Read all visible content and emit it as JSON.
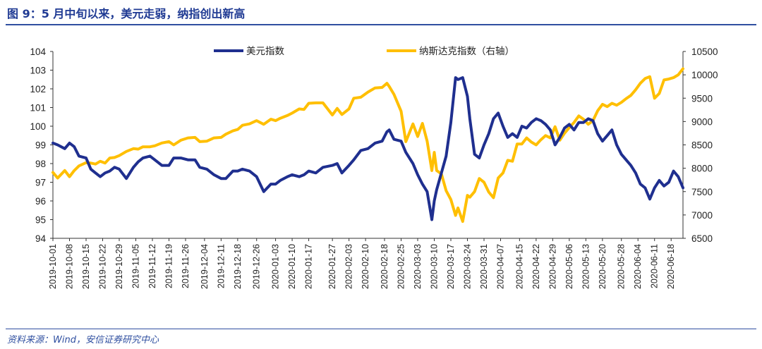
{
  "figure_title": "图 9：5 月中旬以来，美元走弱，纳指创出新高",
  "source": "资料来源：Wind，安信证券研究中心",
  "chart_data": {
    "type": "line",
    "title": "",
    "xlabel": "",
    "ylabel": "",
    "legend_position": "top-center",
    "grid": false,
    "x_start": "2019-10-01",
    "x_end": "2020-06-23",
    "categories": [
      "2019-10-01",
      "2019-10-08",
      "2019-10-15",
      "2019-10-22",
      "2019-10-29",
      "2019-11-05",
      "2019-11-12",
      "2019-11-19",
      "2019-11-26",
      "2019-12-04",
      "2019-12-11",
      "2019-12-18",
      "2019-12-26",
      "2020-01-03",
      "2020-01-10",
      "2020-01-17",
      "2020-01-27",
      "2020-02-03",
      "2020-02-10",
      "2020-02-18",
      "2020-02-25",
      "2020-03-03",
      "2020-03-10",
      "2020-03-17",
      "2020-03-24",
      "2020-03-31",
      "2020-04-07",
      "2020-04-15",
      "2020-04-22",
      "2020-04-29",
      "2020-05-06",
      "2020-05-13",
      "2020-05-20",
      "2020-05-28",
      "2020-06-04",
      "2020-06-11",
      "2020-06-18"
    ],
    "y_left": {
      "min": 94,
      "max": 104,
      "ticks": [
        "94",
        "95",
        "96",
        "97",
        "98",
        "99",
        "100",
        "101",
        "102",
        "103",
        "104"
      ]
    },
    "y_right": {
      "min": 6500,
      "max": 10500,
      "ticks": [
        "6500",
        "7000",
        "7500",
        "8000",
        "8500",
        "9000",
        "9500",
        "10000",
        "10500"
      ]
    },
    "series": [
      {
        "name": "美元指数",
        "axis": "left",
        "color": "#1f2f8f",
        "points": [
          [
            "2019-10-01",
            99.1
          ],
          [
            "2019-10-03",
            99.0
          ],
          [
            "2019-10-06",
            98.8
          ],
          [
            "2019-10-08",
            99.1
          ],
          [
            "2019-10-10",
            98.9
          ],
          [
            "2019-10-12",
            98.4
          ],
          [
            "2019-10-15",
            98.3
          ],
          [
            "2019-10-17",
            97.7
          ],
          [
            "2019-10-19",
            97.5
          ],
          [
            "2019-10-21",
            97.3
          ],
          [
            "2019-10-23",
            97.5
          ],
          [
            "2019-10-25",
            97.6
          ],
          [
            "2019-10-27",
            97.8
          ],
          [
            "2019-10-29",
            97.7
          ],
          [
            "2019-11-01",
            97.2
          ],
          [
            "2019-11-04",
            97.8
          ],
          [
            "2019-11-06",
            98.1
          ],
          [
            "2019-11-08",
            98.3
          ],
          [
            "2019-11-11",
            98.4
          ],
          [
            "2019-11-13",
            98.2
          ],
          [
            "2019-11-16",
            97.9
          ],
          [
            "2019-11-19",
            97.9
          ],
          [
            "2019-11-21",
            98.3
          ],
          [
            "2019-11-24",
            98.3
          ],
          [
            "2019-11-27",
            98.2
          ],
          [
            "2019-11-30",
            98.2
          ],
          [
            "2019-12-02",
            97.8
          ],
          [
            "2019-12-05",
            97.7
          ],
          [
            "2019-12-08",
            97.4
          ],
          [
            "2019-12-11",
            97.2
          ],
          [
            "2019-12-13",
            97.2
          ],
          [
            "2019-12-16",
            97.6
          ],
          [
            "2019-12-18",
            97.6
          ],
          [
            "2019-12-20",
            97.7
          ],
          [
            "2019-12-23",
            97.6
          ],
          [
            "2019-12-26",
            97.3
          ],
          [
            "2019-12-29",
            96.5
          ],
          [
            "2020-01-01",
            96.9
          ],
          [
            "2020-01-03",
            96.9
          ],
          [
            "2020-01-05",
            97.1
          ],
          [
            "2020-01-08",
            97.3
          ],
          [
            "2020-01-10",
            97.4
          ],
          [
            "2020-01-13",
            97.3
          ],
          [
            "2020-01-15",
            97.4
          ],
          [
            "2020-01-17",
            97.6
          ],
          [
            "2020-01-20",
            97.5
          ],
          [
            "2020-01-23",
            97.8
          ],
          [
            "2020-01-27",
            97.9
          ],
          [
            "2020-01-29",
            98.0
          ],
          [
            "2020-01-31",
            97.5
          ],
          [
            "2020-02-03",
            97.9
          ],
          [
            "2020-02-05",
            98.2
          ],
          [
            "2020-02-08",
            98.7
          ],
          [
            "2020-02-11",
            98.8
          ],
          [
            "2020-02-14",
            99.1
          ],
          [
            "2020-02-17",
            99.2
          ],
          [
            "2020-02-19",
            99.7
          ],
          [
            "2020-02-20",
            99.8
          ],
          [
            "2020-02-22",
            99.3
          ],
          [
            "2020-02-25",
            99.2
          ],
          [
            "2020-02-27",
            98.6
          ],
          [
            "2020-03-01",
            98.0
          ],
          [
            "2020-03-03",
            97.4
          ],
          [
            "2020-03-05",
            96.9
          ],
          [
            "2020-03-07",
            96.5
          ],
          [
            "2020-03-09",
            95.0
          ],
          [
            "2020-03-10",
            96.0
          ],
          [
            "2020-03-11",
            96.6
          ],
          [
            "2020-03-13",
            97.5
          ],
          [
            "2020-03-15",
            98.4
          ],
          [
            "2020-03-17",
            100.2
          ],
          [
            "2020-03-19",
            102.6
          ],
          [
            "2020-03-20",
            102.5
          ],
          [
            "2020-03-22",
            102.6
          ],
          [
            "2020-03-24",
            101.6
          ],
          [
            "2020-03-25",
            100.4
          ],
          [
            "2020-03-27",
            98.5
          ],
          [
            "2020-03-29",
            98.3
          ],
          [
            "2020-03-31",
            99.0
          ],
          [
            "2020-04-02",
            99.6
          ],
          [
            "2020-04-04",
            100.4
          ],
          [
            "2020-04-06",
            100.7
          ],
          [
            "2020-04-08",
            100.0
          ],
          [
            "2020-04-10",
            99.4
          ],
          [
            "2020-04-12",
            99.6
          ],
          [
            "2020-04-14",
            99.4
          ],
          [
            "2020-04-16",
            100.0
          ],
          [
            "2020-04-18",
            99.9
          ],
          [
            "2020-04-20",
            100.2
          ],
          [
            "2020-04-22",
            100.4
          ],
          [
            "2020-04-24",
            100.3
          ],
          [
            "2020-04-26",
            100.1
          ],
          [
            "2020-04-28",
            99.8
          ],
          [
            "2020-04-30",
            99.0
          ],
          [
            "2020-05-02",
            99.4
          ],
          [
            "2020-05-04",
            99.9
          ],
          [
            "2020-05-06",
            100.1
          ],
          [
            "2020-05-08",
            99.8
          ],
          [
            "2020-05-10",
            100.2
          ],
          [
            "2020-05-12",
            100.2
          ],
          [
            "2020-05-14",
            100.4
          ],
          [
            "2020-05-16",
            100.3
          ],
          [
            "2020-05-18",
            99.6
          ],
          [
            "2020-05-20",
            99.2
          ],
          [
            "2020-05-22",
            99.5
          ],
          [
            "2020-05-24",
            99.8
          ],
          [
            "2020-05-26",
            99.0
          ],
          [
            "2020-05-28",
            98.5
          ],
          [
            "2020-05-30",
            98.2
          ],
          [
            "2020-06-01",
            97.9
          ],
          [
            "2020-06-03",
            97.5
          ],
          [
            "2020-06-05",
            96.9
          ],
          [
            "2020-06-07",
            96.7
          ],
          [
            "2020-06-09",
            96.1
          ],
          [
            "2020-06-11",
            96.7
          ],
          [
            "2020-06-13",
            97.1
          ],
          [
            "2020-06-15",
            96.8
          ],
          [
            "2020-06-17",
            97.0
          ],
          [
            "2020-06-19",
            97.6
          ],
          [
            "2020-06-21",
            97.3
          ],
          [
            "2020-06-23",
            96.7
          ]
        ]
      },
      {
        "name": "纳斯达克指数（右轴）",
        "axis": "right",
        "color": "#ffbf00",
        "points": [
          [
            "2019-10-01",
            7910
          ],
          [
            "2019-10-03",
            7790
          ],
          [
            "2019-10-06",
            7950
          ],
          [
            "2019-10-08",
            7820
          ],
          [
            "2019-10-10",
            7950
          ],
          [
            "2019-10-12",
            8050
          ],
          [
            "2019-10-15",
            8120
          ],
          [
            "2019-10-17",
            8110
          ],
          [
            "2019-10-19",
            8090
          ],
          [
            "2019-10-21",
            8150
          ],
          [
            "2019-10-23",
            8110
          ],
          [
            "2019-10-25",
            8220
          ],
          [
            "2019-10-27",
            8230
          ],
          [
            "2019-10-29",
            8270
          ],
          [
            "2019-11-01",
            8360
          ],
          [
            "2019-11-04",
            8420
          ],
          [
            "2019-11-06",
            8410
          ],
          [
            "2019-11-08",
            8460
          ],
          [
            "2019-11-11",
            8460
          ],
          [
            "2019-11-13",
            8480
          ],
          [
            "2019-11-16",
            8540
          ],
          [
            "2019-11-19",
            8570
          ],
          [
            "2019-11-21",
            8500
          ],
          [
            "2019-11-24",
            8600
          ],
          [
            "2019-11-27",
            8650
          ],
          [
            "2019-11-30",
            8660
          ],
          [
            "2019-12-02",
            8570
          ],
          [
            "2019-12-05",
            8580
          ],
          [
            "2019-12-08",
            8650
          ],
          [
            "2019-12-11",
            8660
          ],
          [
            "2019-12-13",
            8730
          ],
          [
            "2019-12-16",
            8800
          ],
          [
            "2019-12-18",
            8830
          ],
          [
            "2019-12-20",
            8920
          ],
          [
            "2019-12-23",
            8950
          ],
          [
            "2019-12-26",
            9020
          ],
          [
            "2019-12-29",
            8940
          ],
          [
            "2020-01-01",
            9050
          ],
          [
            "2020-01-03",
            9020
          ],
          [
            "2020-01-05",
            9070
          ],
          [
            "2020-01-08",
            9130
          ],
          [
            "2020-01-10",
            9180
          ],
          [
            "2020-01-13",
            9270
          ],
          [
            "2020-01-15",
            9260
          ],
          [
            "2020-01-17",
            9390
          ],
          [
            "2020-01-20",
            9400
          ],
          [
            "2020-01-23",
            9400
          ],
          [
            "2020-01-27",
            9140
          ],
          [
            "2020-01-29",
            9280
          ],
          [
            "2020-01-31",
            9150
          ],
          [
            "2020-02-03",
            9270
          ],
          [
            "2020-02-05",
            9500
          ],
          [
            "2020-02-08",
            9520
          ],
          [
            "2020-02-11",
            9630
          ],
          [
            "2020-02-14",
            9720
          ],
          [
            "2020-02-17",
            9730
          ],
          [
            "2020-02-19",
            9820
          ],
          [
            "2020-02-20",
            9750
          ],
          [
            "2020-02-22",
            9580
          ],
          [
            "2020-02-25",
            9220
          ],
          [
            "2020-02-27",
            8570
          ],
          [
            "2020-03-01",
            8950
          ],
          [
            "2020-03-03",
            8680
          ],
          [
            "2020-03-05",
            8960
          ],
          [
            "2020-03-07",
            8580
          ],
          [
            "2020-03-09",
            7950
          ],
          [
            "2020-03-10",
            8340
          ],
          [
            "2020-03-11",
            7950
          ],
          [
            "2020-03-13",
            7880
          ],
          [
            "2020-03-15",
            7520
          ],
          [
            "2020-03-17",
            7330
          ],
          [
            "2020-03-19",
            6990
          ],
          [
            "2020-03-20",
            7150
          ],
          [
            "2020-03-22",
            6860
          ],
          [
            "2020-03-24",
            7420
          ],
          [
            "2020-03-25",
            7380
          ],
          [
            "2020-03-27",
            7500
          ],
          [
            "2020-03-29",
            7780
          ],
          [
            "2020-03-31",
            7700
          ],
          [
            "2020-04-02",
            7490
          ],
          [
            "2020-04-04",
            7370
          ],
          [
            "2020-04-06",
            7790
          ],
          [
            "2020-04-08",
            7900
          ],
          [
            "2020-04-10",
            8170
          ],
          [
            "2020-04-12",
            8150
          ],
          [
            "2020-04-14",
            8520
          ],
          [
            "2020-04-16",
            8520
          ],
          [
            "2020-04-18",
            8650
          ],
          [
            "2020-04-20",
            8560
          ],
          [
            "2020-04-22",
            8500
          ],
          [
            "2020-04-24",
            8610
          ],
          [
            "2020-04-26",
            8700
          ],
          [
            "2020-04-28",
            8650
          ],
          [
            "2020-04-30",
            8890
          ],
          [
            "2020-05-02",
            8600
          ],
          [
            "2020-05-04",
            8750
          ],
          [
            "2020-05-06",
            8870
          ],
          [
            "2020-05-08",
            8980
          ],
          [
            "2020-05-10",
            9120
          ],
          [
            "2020-05-12",
            9050
          ],
          [
            "2020-05-14",
            8940
          ],
          [
            "2020-05-16",
            9020
          ],
          [
            "2020-05-18",
            9230
          ],
          [
            "2020-05-20",
            9370
          ],
          [
            "2020-05-22",
            9320
          ],
          [
            "2020-05-24",
            9390
          ],
          [
            "2020-05-26",
            9350
          ],
          [
            "2020-05-28",
            9410
          ],
          [
            "2020-05-30",
            9490
          ],
          [
            "2020-06-01",
            9560
          ],
          [
            "2020-06-03",
            9680
          ],
          [
            "2020-06-05",
            9820
          ],
          [
            "2020-06-07",
            9920
          ],
          [
            "2020-06-09",
            9960
          ],
          [
            "2020-06-11",
            9500
          ],
          [
            "2020-06-13",
            9600
          ],
          [
            "2020-06-15",
            9890
          ],
          [
            "2020-06-17",
            9910
          ],
          [
            "2020-06-19",
            9940
          ],
          [
            "2020-06-21",
            10000
          ],
          [
            "2020-06-23",
            10130
          ]
        ]
      }
    ]
  }
}
